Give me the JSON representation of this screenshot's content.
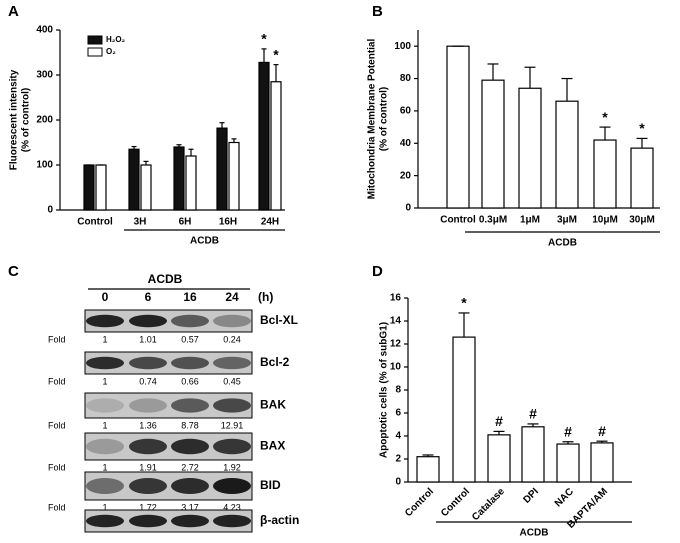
{
  "chart_data": [
    {
      "type": "bar",
      "panel": "A",
      "ylabel": [
        "Fluorescent intensity",
        "(% of control)"
      ],
      "categories": [
        "Control",
        "3H",
        "6H",
        "16H",
        "24H"
      ],
      "group_label": "ACDB",
      "series": [
        {
          "name": "H₂O₂",
          "color": "#111111",
          "values": [
            100,
            135,
            140,
            182,
            328
          ],
          "errors": [
            0,
            6,
            5,
            12,
            30
          ],
          "markers": [
            null,
            null,
            null,
            null,
            "*"
          ]
        },
        {
          "name": "O₂",
          "color": "#ffffff",
          "values": [
            100,
            100,
            120,
            150,
            285
          ],
          "errors": [
            0,
            8,
            15,
            8,
            38
          ],
          "markers": [
            null,
            null,
            null,
            null,
            "*"
          ]
        }
      ],
      "ylim": [
        0,
        400
      ],
      "yticks": [
        0,
        100,
        200,
        300,
        400
      ],
      "legend": "upper left"
    },
    {
      "type": "bar",
      "panel": "B",
      "ylabel": [
        "Mitochondria Membrane Potential",
        "(% of control)"
      ],
      "categories": [
        "Control",
        "0.3μM",
        "1μM",
        "3μM",
        "10μM",
        "30μM"
      ],
      "group_label": "ACDB",
      "series": [
        {
          "color": "#ffffff",
          "values": [
            100,
            79,
            74,
            66,
            42,
            37
          ],
          "errors": [
            0,
            10,
            13,
            14,
            8,
            6
          ],
          "markers": [
            null,
            null,
            null,
            null,
            "*",
            "*"
          ]
        }
      ],
      "ylim": [
        0,
        110
      ],
      "yticks": [
        0,
        20,
        40,
        60,
        80,
        100
      ]
    },
    {
      "type": "bar",
      "panel": "D",
      "ylabel": [
        "Apoptotic cells  (% of subG1)"
      ],
      "categories": [
        "Control",
        "Control",
        "Catalase",
        "DPI",
        "NAC",
        "BAPTA/AM"
      ],
      "group_label": "ACDB",
      "series": [
        {
          "color": "#ffffff",
          "values": [
            2.2,
            12.6,
            4.1,
            4.8,
            3.3,
            3.4
          ],
          "errors": [
            0.15,
            2.1,
            0.3,
            0.25,
            0.2,
            0.15
          ],
          "markers": [
            null,
            "*",
            "#",
            "#",
            "#",
            "#"
          ]
        }
      ],
      "ylim": [
        0,
        16
      ],
      "yticks": [
        0,
        2,
        4,
        6,
        8,
        10,
        12,
        14,
        16
      ]
    }
  ],
  "blot": {
    "panel": "C",
    "treatment": "ACDB",
    "unit": "(h)",
    "times": [
      "0",
      "6",
      "16",
      "24"
    ],
    "fold_label": "Fold",
    "rows": [
      {
        "protein": "Bcl-XL",
        "fold": [
          1,
          1.01,
          0.57,
          0.24
        ]
      },
      {
        "protein": "Bcl-2",
        "fold": [
          1,
          0.74,
          0.66,
          0.45
        ]
      },
      {
        "protein": "BAK",
        "fold": [
          1,
          1.36,
          8.78,
          12.91
        ]
      },
      {
        "protein": "BAX",
        "fold": [
          1,
          1.91,
          2.72,
          1.92
        ]
      },
      {
        "protein": "BID",
        "fold": [
          1,
          1.72,
          3.17,
          4.23
        ]
      },
      {
        "protein": "β-actin"
      }
    ]
  }
}
